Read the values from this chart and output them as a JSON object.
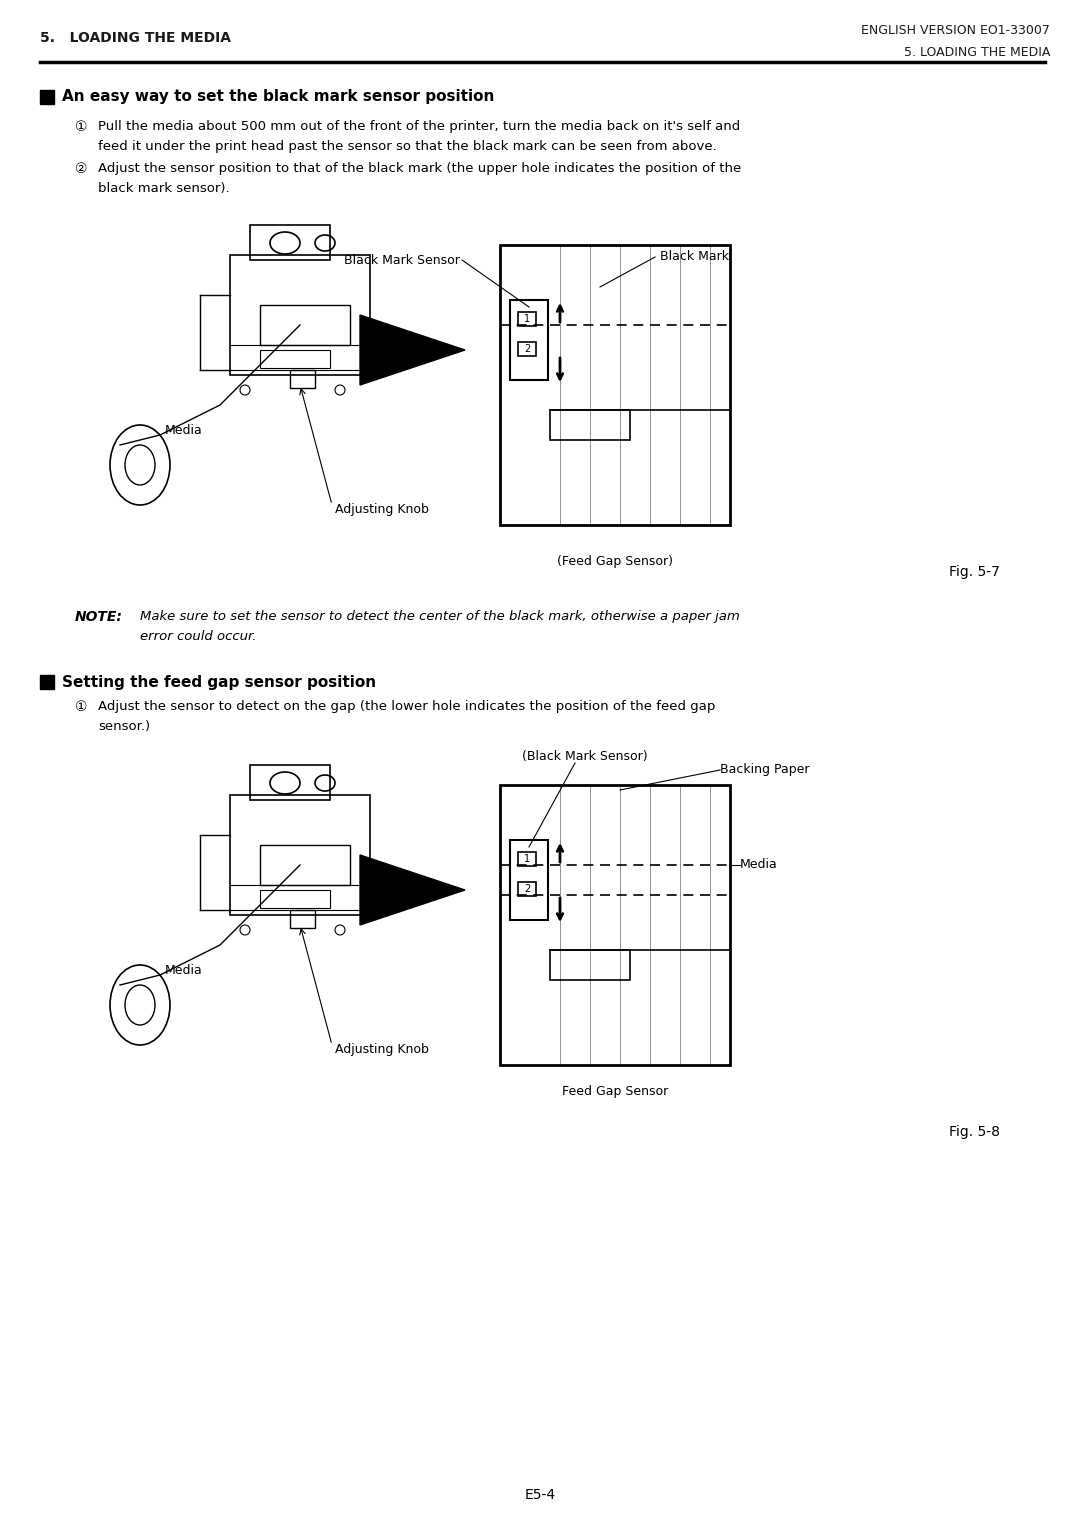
{
  "page_bg": "#ffffff",
  "header_left": "5.   LOADING THE MEDIA",
  "header_right": "ENGLISH VERSION EO1-33007",
  "subheader_right": "5. LOADING THE MEDIA",
  "footer_center": "E5-4",
  "section1_title": "An easy way to set the black mark sensor position",
  "section1_step1": "Pull the media about 500 mm out of the front of the printer, turn the media back on it's self and\n      feed it under the print head past the sensor so that the black mark can be seen from above.",
  "section1_step2": "Adjust the sensor position to that of the black mark (the upper hole indicates the position of the\n      black mark sensor).",
  "fig1_label": "Fig. 5-7",
  "fig1_ann1": "Black Mark Sensor",
  "fig1_ann2": "Black Mark",
  "fig1_ann3": "Media",
  "fig1_ann4": "Adjusting Knob",
  "fig1_ann5": "(Feed Gap Sensor)",
  "note_label": "NOTE:",
  "note_text": "Make sure to set the sensor to detect the center of the black mark, otherwise a paper jam\n          error could occur.",
  "section2_title": "Setting the feed gap sensor position",
  "section2_step1": "Adjust the sensor to detect on the gap (the lower hole indicates the position of the feed gap\n      sensor.)",
  "fig2_label": "Fig. 5-8",
  "fig2_ann1": "(Black Mark Sensor)",
  "fig2_ann2": "Backing Paper",
  "fig2_ann3": "Media",
  "fig2_ann4": "Media",
  "fig2_ann5": "Adjusting Knob",
  "fig2_ann6": "Feed Gap Sensor"
}
